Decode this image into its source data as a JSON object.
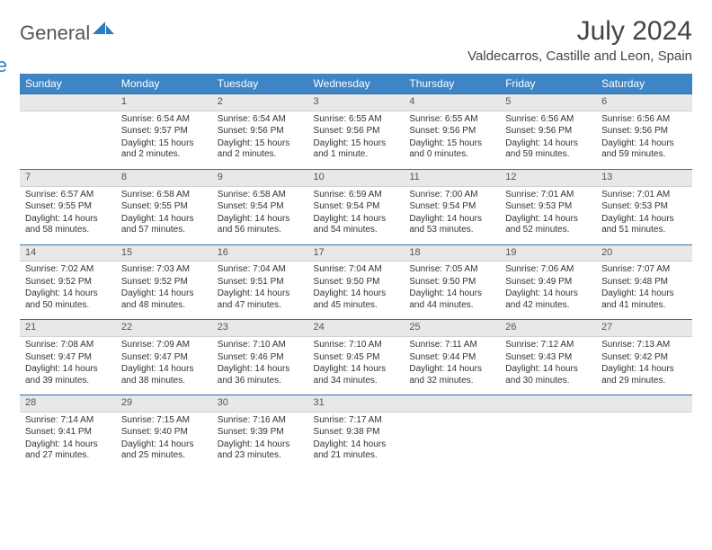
{
  "brand": {
    "general": "General",
    "blue": "Blue"
  },
  "title": "July 2024",
  "location": "Valdecarros, Castille and Leon, Spain",
  "header_bg": "#3e85c6",
  "header_fg": "#ffffff",
  "daynum_bg": "#e8e8e8",
  "border_color": "#2f6fa8",
  "days": [
    "Sunday",
    "Monday",
    "Tuesday",
    "Wednesday",
    "Thursday",
    "Friday",
    "Saturday"
  ],
  "weeks": [
    [
      null,
      {
        "n": "1",
        "sr": "6:54 AM",
        "ss": "9:57 PM",
        "dl": "15 hours and 2 minutes."
      },
      {
        "n": "2",
        "sr": "6:54 AM",
        "ss": "9:56 PM",
        "dl": "15 hours and 2 minutes."
      },
      {
        "n": "3",
        "sr": "6:55 AM",
        "ss": "9:56 PM",
        "dl": "15 hours and 1 minute."
      },
      {
        "n": "4",
        "sr": "6:55 AM",
        "ss": "9:56 PM",
        "dl": "15 hours and 0 minutes."
      },
      {
        "n": "5",
        "sr": "6:56 AM",
        "ss": "9:56 PM",
        "dl": "14 hours and 59 minutes."
      },
      {
        "n": "6",
        "sr": "6:56 AM",
        "ss": "9:56 PM",
        "dl": "14 hours and 59 minutes."
      }
    ],
    [
      {
        "n": "7",
        "sr": "6:57 AM",
        "ss": "9:55 PM",
        "dl": "14 hours and 58 minutes."
      },
      {
        "n": "8",
        "sr": "6:58 AM",
        "ss": "9:55 PM",
        "dl": "14 hours and 57 minutes."
      },
      {
        "n": "9",
        "sr": "6:58 AM",
        "ss": "9:54 PM",
        "dl": "14 hours and 56 minutes."
      },
      {
        "n": "10",
        "sr": "6:59 AM",
        "ss": "9:54 PM",
        "dl": "14 hours and 54 minutes."
      },
      {
        "n": "11",
        "sr": "7:00 AM",
        "ss": "9:54 PM",
        "dl": "14 hours and 53 minutes."
      },
      {
        "n": "12",
        "sr": "7:01 AM",
        "ss": "9:53 PM",
        "dl": "14 hours and 52 minutes."
      },
      {
        "n": "13",
        "sr": "7:01 AM",
        "ss": "9:53 PM",
        "dl": "14 hours and 51 minutes."
      }
    ],
    [
      {
        "n": "14",
        "sr": "7:02 AM",
        "ss": "9:52 PM",
        "dl": "14 hours and 50 minutes."
      },
      {
        "n": "15",
        "sr": "7:03 AM",
        "ss": "9:52 PM",
        "dl": "14 hours and 48 minutes."
      },
      {
        "n": "16",
        "sr": "7:04 AM",
        "ss": "9:51 PM",
        "dl": "14 hours and 47 minutes."
      },
      {
        "n": "17",
        "sr": "7:04 AM",
        "ss": "9:50 PM",
        "dl": "14 hours and 45 minutes."
      },
      {
        "n": "18",
        "sr": "7:05 AM",
        "ss": "9:50 PM",
        "dl": "14 hours and 44 minutes."
      },
      {
        "n": "19",
        "sr": "7:06 AM",
        "ss": "9:49 PM",
        "dl": "14 hours and 42 minutes."
      },
      {
        "n": "20",
        "sr": "7:07 AM",
        "ss": "9:48 PM",
        "dl": "14 hours and 41 minutes."
      }
    ],
    [
      {
        "n": "21",
        "sr": "7:08 AM",
        "ss": "9:47 PM",
        "dl": "14 hours and 39 minutes."
      },
      {
        "n": "22",
        "sr": "7:09 AM",
        "ss": "9:47 PM",
        "dl": "14 hours and 38 minutes."
      },
      {
        "n": "23",
        "sr": "7:10 AM",
        "ss": "9:46 PM",
        "dl": "14 hours and 36 minutes."
      },
      {
        "n": "24",
        "sr": "7:10 AM",
        "ss": "9:45 PM",
        "dl": "14 hours and 34 minutes."
      },
      {
        "n": "25",
        "sr": "7:11 AM",
        "ss": "9:44 PM",
        "dl": "14 hours and 32 minutes."
      },
      {
        "n": "26",
        "sr": "7:12 AM",
        "ss": "9:43 PM",
        "dl": "14 hours and 30 minutes."
      },
      {
        "n": "27",
        "sr": "7:13 AM",
        "ss": "9:42 PM",
        "dl": "14 hours and 29 minutes."
      }
    ],
    [
      {
        "n": "28",
        "sr": "7:14 AM",
        "ss": "9:41 PM",
        "dl": "14 hours and 27 minutes."
      },
      {
        "n": "29",
        "sr": "7:15 AM",
        "ss": "9:40 PM",
        "dl": "14 hours and 25 minutes."
      },
      {
        "n": "30",
        "sr": "7:16 AM",
        "ss": "9:39 PM",
        "dl": "14 hours and 23 minutes."
      },
      {
        "n": "31",
        "sr": "7:17 AM",
        "ss": "9:38 PM",
        "dl": "14 hours and 21 minutes."
      },
      null,
      null,
      null
    ]
  ],
  "labels": {
    "sunrise": "Sunrise:",
    "sunset": "Sunset:",
    "daylight": "Daylight:"
  }
}
